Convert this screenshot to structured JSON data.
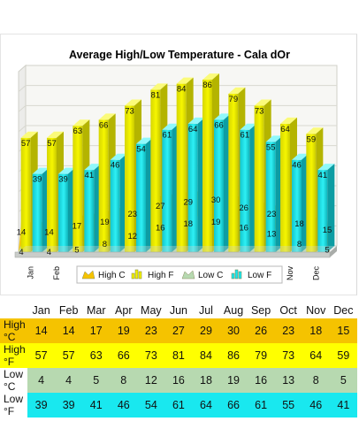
{
  "chart_data": {
    "type": "bar",
    "title": "Average High/Low Temperature - Cala dOr",
    "categories": [
      "Jan",
      "Feb",
      "Mar",
      "Apr",
      "May",
      "Jun",
      "Jul",
      "Aug",
      "Sep",
      "Oct",
      "Nov",
      "Dec"
    ],
    "ylim": [
      0,
      90
    ],
    "grid": true,
    "legend_position": "bottom",
    "series": [
      {
        "name": "High C",
        "kind": "area",
        "color": "#f5c300",
        "values": [
          14,
          14,
          17,
          19,
          23,
          27,
          29,
          30,
          26,
          23,
          18,
          15
        ]
      },
      {
        "name": "High F",
        "kind": "bar",
        "color": "#f2f200",
        "values": [
          57,
          57,
          63,
          66,
          73,
          81,
          84,
          86,
          79,
          73,
          64,
          59
        ]
      },
      {
        "name": "Low C",
        "kind": "area",
        "color": "#b7d9b0",
        "values": [
          4,
          4,
          5,
          8,
          12,
          16,
          18,
          19,
          16,
          13,
          8,
          5
        ]
      },
      {
        "name": "Low F",
        "kind": "bar",
        "color": "#19e8ef",
        "values": [
          39,
          39,
          41,
          46,
          54,
          61,
          64,
          66,
          61,
          55,
          46,
          41
        ]
      }
    ]
  },
  "table": {
    "months": [
      "Jan",
      "Feb",
      "Mar",
      "Apr",
      "May",
      "Jun",
      "Jul",
      "Aug",
      "Sep",
      "Oct",
      "Nov",
      "Dec"
    ],
    "rows": [
      {
        "label": "High °C",
        "values": [
          14,
          14,
          17,
          19,
          23,
          27,
          29,
          30,
          26,
          23,
          18,
          15
        ]
      },
      {
        "label": "High °F",
        "values": [
          57,
          57,
          63,
          66,
          73,
          81,
          84,
          86,
          79,
          73,
          64,
          59
        ]
      },
      {
        "label": "Low °C",
        "values": [
          4,
          4,
          5,
          8,
          12,
          16,
          18,
          19,
          16,
          13,
          8,
          5
        ]
      },
      {
        "label": "Low °F",
        "values": [
          39,
          39,
          41,
          46,
          54,
          61,
          64,
          66,
          61,
          55,
          46,
          41
        ]
      }
    ]
  }
}
